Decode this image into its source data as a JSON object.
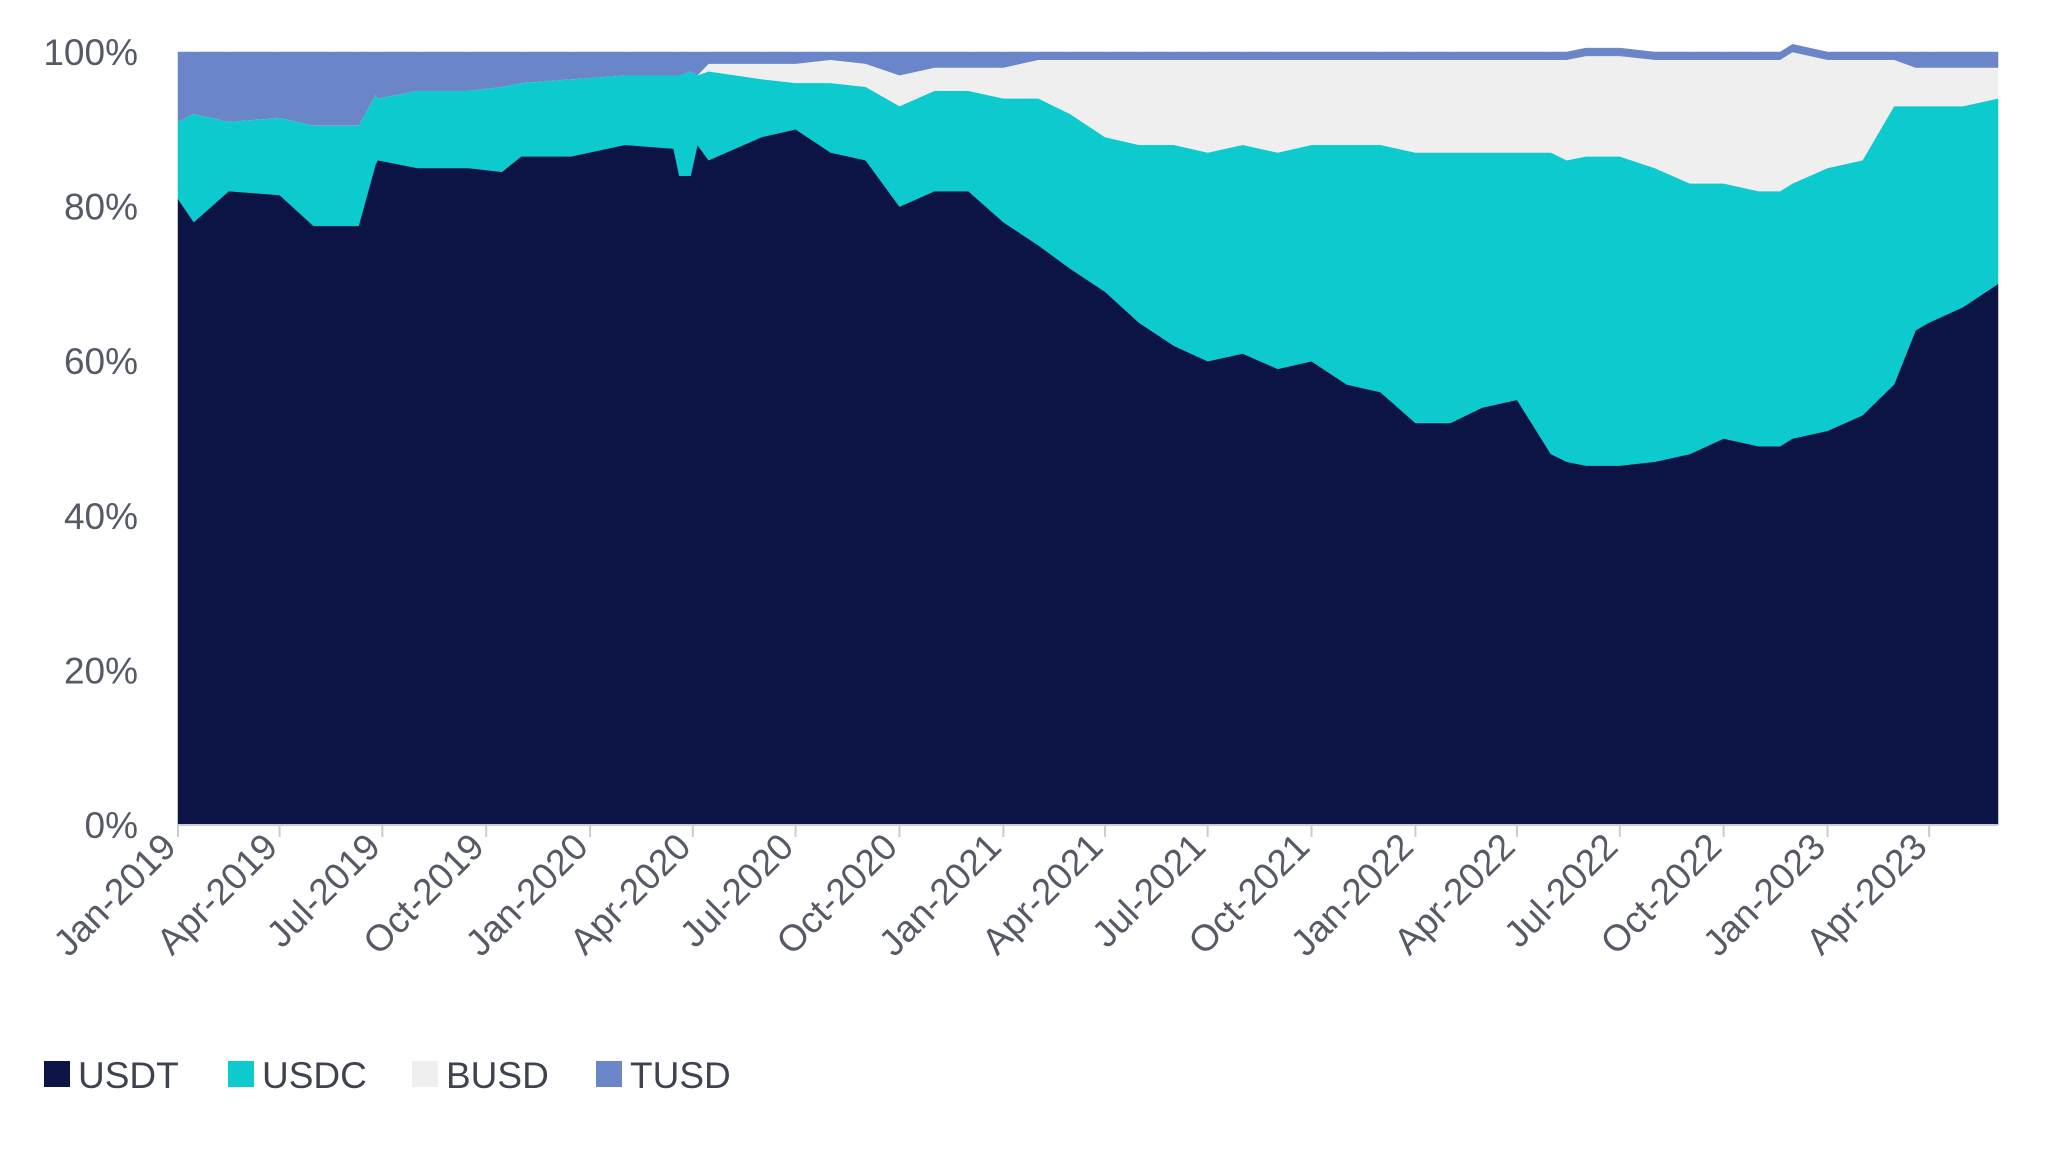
{
  "chart_data": {
    "type": "area",
    "stacked": true,
    "normalized": true,
    "title": "",
    "xlabel": "",
    "ylabel": "",
    "ylim": [
      0,
      100
    ],
    "y_ticks": [
      "0%",
      "20%",
      "40%",
      "60%",
      "80%",
      "100%"
    ],
    "x_ticks": [
      "Jan-2019",
      "Apr-2019",
      "Jul-2019",
      "Oct-2019",
      "Jan-2020",
      "Apr-2020",
      "Jul-2020",
      "Oct-2020",
      "Jan-2021",
      "Apr-2021",
      "Jul-2021",
      "Oct-2021",
      "Jan-2022",
      "Apr-2022",
      "Jul-2022",
      "Oct-2022",
      "Jan-2023",
      "Apr-2023"
    ],
    "x": [
      "2019-01-01",
      "2019-01-15",
      "2019-02-15",
      "2019-04-01",
      "2019-05-01",
      "2019-05-20",
      "2019-06-10",
      "2019-06-25",
      "2019-06-27",
      "2019-08-01",
      "2019-09-15",
      "2019-10-15",
      "2019-11-01",
      "2019-12-15",
      "2020-02-01",
      "2020-03-15",
      "2020-03-20",
      "2020-03-30",
      "2020-04-05",
      "2020-04-15",
      "2020-06-01",
      "2020-07-01",
      "2020-08-01",
      "2020-09-01",
      "2020-10-01",
      "2020-11-01",
      "2020-12-01",
      "2021-01-01",
      "2021-02-01",
      "2021-03-01",
      "2021-04-01",
      "2021-05-01",
      "2021-06-01",
      "2021-07-01",
      "2021-08-01",
      "2021-09-01",
      "2021-10-01",
      "2021-11-01",
      "2021-12-01",
      "2022-01-01",
      "2022-02-01",
      "2022-03-01",
      "2022-04-01",
      "2022-05-01",
      "2022-05-15",
      "2022-06-01",
      "2022-07-01",
      "2022-08-01",
      "2022-09-01",
      "2022-10-01",
      "2022-11-01",
      "2022-11-20",
      "2022-12-01",
      "2023-01-01",
      "2023-02-01",
      "2023-03-01",
      "2023-03-20",
      "2023-04-01",
      "2023-05-01",
      "2023-06-01"
    ],
    "series": [
      {
        "name": "USDT",
        "color": "#0c1445",
        "values": [
          81,
          78,
          82,
          81.5,
          77.5,
          77.5,
          77.5,
          85.5,
          86,
          85,
          85,
          84.5,
          86.5,
          86.5,
          88,
          87.5,
          84,
          84,
          88,
          86,
          89,
          90,
          87,
          86,
          80,
          82,
          82,
          78,
          75,
          72,
          69,
          65,
          62,
          60,
          61,
          59,
          60,
          57,
          56,
          52,
          52,
          54,
          55,
          48,
          47,
          46.5,
          46.5,
          47,
          48,
          50,
          49,
          49,
          50,
          51,
          53,
          57,
          64,
          65,
          67,
          70
        ]
      },
      {
        "name": "USDC",
        "color": "#0dcace",
        "values": [
          10,
          14,
          9,
          10,
          13,
          13,
          13,
          9,
          8,
          10,
          10,
          11,
          9.5,
          10,
          9,
          9.5,
          13,
          13.5,
          9,
          11.5,
          7.5,
          6,
          9,
          9.5,
          13,
          13,
          13,
          16,
          19,
          20,
          20,
          23,
          26,
          27,
          27,
          28,
          28,
          31,
          32,
          35,
          35,
          33,
          32,
          39,
          39,
          40,
          40,
          38,
          35,
          33,
          33,
          33,
          33,
          34,
          33,
          36,
          29,
          28,
          26,
          24
        ]
      },
      {
        "name": "BUSD",
        "color": "#efefef",
        "values": [
          0,
          0,
          0,
          0,
          0,
          0,
          0,
          0,
          0,
          0,
          0,
          0,
          0,
          0,
          0,
          0,
          0,
          0,
          0,
          1,
          2,
          2.5,
          3,
          3,
          4,
          3,
          3,
          4,
          5,
          7,
          10,
          11,
          11,
          12,
          11,
          12,
          11,
          11,
          11,
          12,
          12,
          12,
          12,
          12,
          13,
          13,
          13,
          14,
          16,
          16,
          17,
          17,
          17,
          14,
          13,
          6,
          5,
          5,
          5,
          4
        ]
      },
      {
        "name": "TUSD",
        "color": "#6a86c8",
        "values": [
          9,
          8,
          9,
          8.5,
          9.5,
          9.5,
          9.5,
          5.5,
          6,
          5,
          5,
          4.5,
          4,
          3.5,
          3,
          3,
          3,
          2.5,
          3,
          1.5,
          1.5,
          1.5,
          1,
          1.5,
          3,
          2,
          2,
          2,
          1,
          1,
          1,
          1,
          1,
          1,
          1,
          1,
          1,
          1,
          1,
          1,
          1,
          1,
          1,
          1,
          1,
          1,
          1,
          1,
          1,
          1,
          1,
          1,
          1,
          1,
          1,
          1,
          2,
          2,
          2,
          2
        ]
      }
    ],
    "legend": {
      "position": "bottom-left"
    },
    "grid": false
  }
}
